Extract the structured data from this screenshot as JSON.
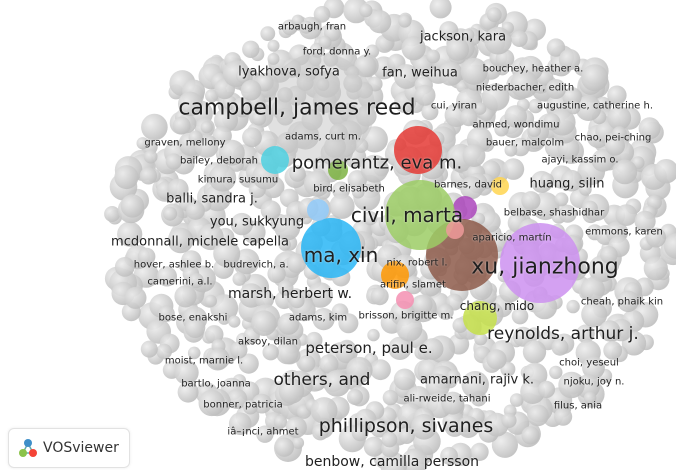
{
  "app": {
    "name": "VOSviewer"
  },
  "colors": {
    "bubble_gray": "#c9c9c9",
    "accent_red": "#e53935",
    "accent_cyan": "#29b6f6"
  },
  "bubbles": [
    {
      "color": "#c8c8c8"
    },
    {
      "color": "#e53935"
    },
    {
      "color": "#29b6f6"
    },
    {
      "color": "#ab47bc"
    },
    {
      "color": "#8d5a4a"
    },
    {
      "color": "#cd90f0"
    },
    {
      "color": "#9ccc65"
    },
    {
      "color": "#ff9800"
    },
    {
      "color": "#7cb342"
    },
    {
      "color": "#ffd54f"
    },
    {
      "color": "#f48fb1"
    },
    {
      "color": "#c6e04a"
    },
    {
      "color": "#90caf9"
    },
    {
      "color": "#ef9a9a"
    },
    {
      "color": "#4dd0e1"
    }
  ],
  "labels": [
    {
      "text": "arbaugh, fran"
    },
    {
      "text": "jackson, kara"
    },
    {
      "text": "ford, donna y."
    },
    {
      "text": "lyakhova, sofya"
    },
    {
      "text": "fan, weihua"
    },
    {
      "text": "bouchey, heather a."
    },
    {
      "text": "niederbacher, edith"
    },
    {
      "text": "campbell, james reed"
    },
    {
      "text": "cui, yiran"
    },
    {
      "text": "augustine, catherine h."
    },
    {
      "text": "ahmed, wondimu"
    },
    {
      "text": "adams, curt m."
    },
    {
      "text": "bauer, malcolm"
    },
    {
      "text": "chao, pei-ching"
    },
    {
      "text": "graven, mellony"
    },
    {
      "text": "bailey, deborah"
    },
    {
      "text": "pomerantz, eva m."
    },
    {
      "text": "ajayi, kassim o."
    },
    {
      "text": "kimura, susumu"
    },
    {
      "text": "huang, silin"
    },
    {
      "text": "barnes, david"
    },
    {
      "text": "bird, elisabeth"
    },
    {
      "text": "balli, sandra j."
    },
    {
      "text": "civil, marta"
    },
    {
      "text": "belbase, shashidhar"
    },
    {
      "text": "you, sukkyung"
    },
    {
      "text": "emmons, karen"
    },
    {
      "text": "mcdonnall, michele capella"
    },
    {
      "text": "aparicio, martín"
    },
    {
      "text": "ma, xin"
    },
    {
      "text": "xu, jianzhong"
    },
    {
      "text": "hover, ashlee b."
    },
    {
      "text": "budrevich, a."
    },
    {
      "text": "nix, robert l."
    },
    {
      "text": "camerini, a.l."
    },
    {
      "text": "arifin, slamet"
    },
    {
      "text": "marsh, herbert w."
    },
    {
      "text": "chang, mido"
    },
    {
      "text": "cheah, phaik kin"
    },
    {
      "text": "bose, enakshi"
    },
    {
      "text": "adams, kim"
    },
    {
      "text": "brisson, brigitte m."
    },
    {
      "text": "reynolds, arthur j."
    },
    {
      "text": "aksoy, dilan"
    },
    {
      "text": "peterson, paul e."
    },
    {
      "text": "moist, marnie l."
    },
    {
      "text": "choi, yeseul"
    },
    {
      "text": "others, and"
    },
    {
      "text": "amarnani, rajiv k."
    },
    {
      "text": "bartlo, joanna"
    },
    {
      "text": "njoku, joy n."
    },
    {
      "text": "ali-rweide, tahani"
    },
    {
      "text": "bonner, patricia"
    },
    {
      "text": "filus, ania"
    },
    {
      "text": "iâ–¡nci, ahmet"
    },
    {
      "text": "phillipson, sivanes"
    },
    {
      "text": "benbow, camilla persson"
    }
  ]
}
